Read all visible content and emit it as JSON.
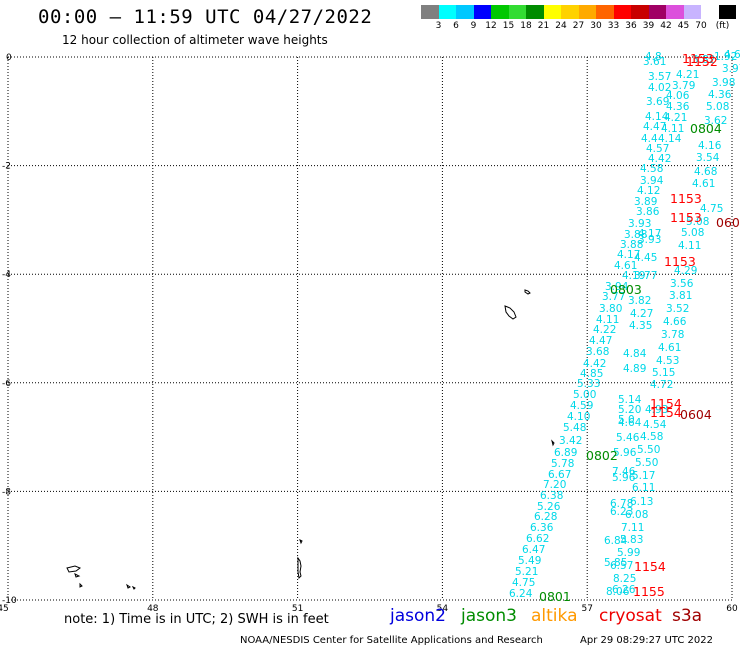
{
  "header": {
    "title": "00:00 – 11:59 UTC 04/27/2022",
    "subtitle": "12 hour collection of altimeter wave heights"
  },
  "legend": {
    "colors": [
      "#808080",
      "#00ffff",
      "#00c8ff",
      "#0000ff",
      "#00c800",
      "#32dc32",
      "#008c00",
      "#ffff00",
      "#ffd200",
      "#ffaa00",
      "#ff6400",
      "#ff0000",
      "#c80000",
      "#a00064",
      "#dc50dc",
      "#c8b4ff",
      "#ffffff",
      "#000000"
    ],
    "labels": [
      "3",
      "6",
      "9",
      "12",
      "15",
      "18",
      "21",
      "24",
      "27",
      "30",
      "33",
      "36",
      "39",
      "42",
      "45",
      "70",
      "(ft)"
    ]
  },
  "axes": {
    "x_ticks": [
      "45",
      "48",
      "51",
      "54",
      "57",
      "60"
    ],
    "y_ticks": [
      "0",
      "-2",
      "-4",
      "-6",
      "-8",
      "-10"
    ]
  },
  "tracks": {
    "swh_color": "#00d8e8",
    "points": [
      [
        "4.8",
        645,
        60
      ],
      [
        "3.61",
        643,
        65
      ],
      [
        "3.82",
        692,
        63
      ],
      [
        "1.92",
        714,
        60
      ],
      [
        "4.61",
        724,
        58
      ],
      [
        "3.97",
        722,
        72
      ],
      [
        "3.57",
        648,
        80
      ],
      [
        "4.21",
        676,
        78
      ],
      [
        "3.98",
        712,
        86
      ],
      [
        "4.02",
        648,
        91
      ],
      [
        "3.79",
        672,
        89
      ],
      [
        "4.36",
        708,
        98
      ],
      [
        "4.06",
        666,
        99
      ],
      [
        "3.69",
        646,
        105
      ],
      [
        "4.36",
        666,
        110
      ],
      [
        "5.08",
        706,
        110
      ],
      [
        "4.14",
        645,
        120
      ],
      [
        "4.21",
        664,
        121
      ],
      [
        "3.62",
        704,
        124
      ],
      [
        "4.47",
        643,
        130
      ],
      [
        "4.11",
        661,
        132
      ],
      [
        "4.16",
        698,
        149
      ],
      [
        "4.4",
        641,
        142
      ],
      [
        "4.14",
        658,
        142
      ],
      [
        "4.57",
        646,
        152
      ],
      [
        "3.54",
        696,
        161
      ],
      [
        "4.42",
        648,
        162
      ],
      [
        "4.58",
        640,
        172
      ],
      [
        "4.68",
        694,
        175
      ],
      [
        "3.94",
        640,
        184
      ],
      [
        "4.61",
        692,
        187
      ],
      [
        "4.12",
        637,
        194
      ],
      [
        "3.89",
        634,
        205
      ],
      [
        "4.75",
        700,
        212
      ],
      [
        "3.86",
        636,
        215
      ],
      [
        "3.93",
        628,
        227
      ],
      [
        "5.08",
        686,
        225
      ],
      [
        "3.88",
        624,
        238
      ],
      [
        "4.17",
        638,
        237
      ],
      [
        "5.08",
        681,
        236
      ],
      [
        "3.93",
        638,
        243
      ],
      [
        "3.88",
        620,
        248
      ],
      [
        "4.11",
        678,
        249
      ],
      [
        "4.17",
        617,
        258
      ],
      [
        "4.45",
        634,
        261
      ],
      [
        "4.61",
        614,
        269
      ],
      [
        "4.29",
        674,
        274
      ],
      [
        "4.19",
        622,
        279
      ],
      [
        "3.77",
        634,
        279
      ],
      [
        "3.56",
        670,
        287
      ],
      [
        "3.94",
        605,
        290
      ],
      [
        "3.82",
        628,
        304
      ],
      [
        "3.81",
        669,
        299
      ],
      [
        "3.77",
        602,
        300
      ],
      [
        "3.80",
        599,
        312
      ],
      [
        "4.27",
        630,
        317
      ],
      [
        "3.52",
        666,
        312
      ],
      [
        "4.11",
        596,
        323
      ],
      [
        "4.35",
        629,
        329
      ],
      [
        "4.66",
        663,
        325
      ],
      [
        "4.22",
        593,
        333
      ],
      [
        "3.78",
        661,
        338
      ],
      [
        "4.47",
        589,
        344
      ],
      [
        "3.68",
        586,
        355
      ],
      [
        "4.84",
        623,
        357
      ],
      [
        "4.61",
        658,
        351
      ],
      [
        "4.42",
        583,
        367
      ],
      [
        "4.53",
        656,
        364
      ],
      [
        "4.89",
        623,
        372
      ],
      [
        "4.85",
        580,
        377
      ],
      [
        "5.15",
        652,
        376
      ],
      [
        "5.33",
        577,
        387
      ],
      [
        "4.72",
        650,
        388
      ],
      [
        "5.00",
        573,
        398
      ],
      [
        "5.14",
        618,
        403
      ],
      [
        "4.59",
        570,
        409
      ],
      [
        "5.20",
        618,
        413
      ],
      [
        "4.93",
        645,
        413
      ],
      [
        "4.10",
        567,
        420
      ],
      [
        "5.0",
        618,
        423
      ],
      [
        "4.64",
        618,
        426
      ],
      [
        "4.54",
        643,
        428
      ],
      [
        "5.48",
        563,
        431
      ],
      [
        "5.46",
        616,
        441
      ],
      [
        "4.58",
        640,
        440
      ],
      [
        "3.42",
        559,
        444
      ],
      [
        "5.50",
        637,
        453
      ],
      [
        "6.89",
        554,
        456
      ],
      [
        "5.96",
        613,
        456
      ],
      [
        "5.78",
        551,
        467
      ],
      [
        "5.50",
        635,
        466
      ],
      [
        "7.46",
        612,
        475
      ],
      [
        "6.67",
        548,
        478
      ],
      [
        "5.96",
        612,
        481
      ],
      [
        "5.17",
        632,
        479
      ],
      [
        "7.20",
        543,
        488
      ],
      [
        "6.11",
        632,
        491
      ],
      [
        "6.38",
        540,
        499
      ],
      [
        "5.26",
        537,
        510
      ],
      [
        "6.78",
        610,
        507
      ],
      [
        "6.13",
        630,
        505
      ],
      [
        "6.28",
        534,
        520
      ],
      [
        "6.23",
        610,
        515
      ],
      [
        "6.08",
        625,
        518
      ],
      [
        "6.36",
        530,
        531
      ],
      [
        "7.11",
        621,
        531
      ],
      [
        "6.62",
        526,
        542
      ],
      [
        "6.84",
        604,
        544
      ],
      [
        "5.83",
        620,
        543
      ],
      [
        "6.47",
        522,
        553
      ],
      [
        "5.99",
        617,
        556
      ],
      [
        "5.49",
        518,
        564
      ],
      [
        "5.85",
        604,
        566
      ],
      [
        "6.57",
        610,
        569
      ],
      [
        "5.21",
        515,
        575
      ],
      [
        "8.25",
        613,
        582
      ],
      [
        "4.75",
        512,
        586
      ],
      [
        "6.26",
        612,
        593
      ],
      [
        "6.24",
        509,
        597
      ],
      [
        "8.06",
        606,
        595
      ]
    ],
    "time_labels": [
      {
        "text": "1153",
        "color": "#ff0000",
        "x": 682,
        "y": 63
      },
      {
        "text": "1152",
        "color": "#ff0000",
        "x": 686,
        "y": 66
      },
      {
        "text": "0804",
        "color": "#008c00",
        "x": 690,
        "y": 133
      },
      {
        "text": "1153",
        "color": "#ff0000",
        "x": 670,
        "y": 203
      },
      {
        "text": "1153",
        "color": "#ff0000",
        "x": 670,
        "y": 222
      },
      {
        "text": "060",
        "color": "#a00000",
        "x": 716,
        "y": 227
      },
      {
        "text": "1153",
        "color": "#ff0000",
        "x": 664,
        "y": 266
      },
      {
        "text": "0803",
        "color": "#008c00",
        "x": 610,
        "y": 294
      },
      {
        "text": "1154",
        "color": "#ff0000",
        "x": 650,
        "y": 408
      },
      {
        "text": "1154",
        "color": "#ff0000",
        "x": 650,
        "y": 417
      },
      {
        "text": "0604",
        "color": "#a00000",
        "x": 680,
        "y": 419
      },
      {
        "text": "0802",
        "color": "#008c00",
        "x": 586,
        "y": 460
      },
      {
        "text": "1154",
        "color": "#ff0000",
        "x": 634,
        "y": 571
      },
      {
        "text": "1155",
        "color": "#ff0000",
        "x": 633,
        "y": 596
      },
      {
        "text": "0801",
        "color": "#008c00",
        "x": 539,
        "y": 601
      }
    ]
  },
  "note": "note: 1) Time is in UTC; 2) SWH is in feet",
  "satellites": [
    {
      "name": "jason2",
      "color": "#0000dd"
    },
    {
      "name": "jason3",
      "color": "#008c00"
    },
    {
      "name": "altika",
      "color": "#ff9900"
    },
    {
      "name": "cryosat",
      "color": "#ee0000"
    },
    {
      "name": "s3a",
      "color": "#a00000"
    }
  ],
  "footer": {
    "credit": "NOAA/NESDIS Center for Satellite Applications and Research",
    "timestamp": "Apr 29 08:29:27 UTC 2022"
  }
}
